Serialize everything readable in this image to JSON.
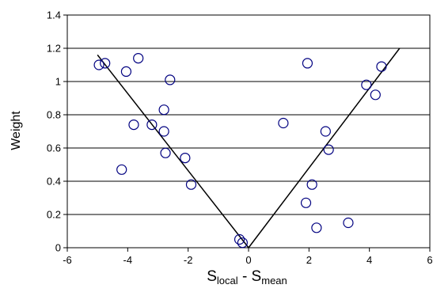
{
  "chart_data": {
    "type": "scatter",
    "title": "",
    "ylabel": "Weight",
    "xlabel": {
      "main": "S",
      "sub1": "local",
      "mid": " - S",
      "sub2": "mean"
    },
    "xlim": [
      -6,
      6
    ],
    "ylim": [
      0,
      1.4
    ],
    "x_ticks": [
      -6,
      -4,
      -2,
      0,
      2,
      4,
      6
    ],
    "y_ticks": [
      0,
      0.2,
      0.4,
      0.6,
      0.8,
      1,
      1.2,
      1.4
    ],
    "x_tick_labels": [
      "-6",
      "-4",
      "-2",
      "0",
      "2",
      "4",
      "6"
    ],
    "y_tick_labels": [
      "0",
      "0.2",
      "0.4",
      "0.6",
      "0.8",
      "1",
      "1.2",
      "1.4"
    ],
    "grid": "horizontal",
    "marker_color": "#000080",
    "line_color": "#000000",
    "points": [
      {
        "x": -4.95,
        "y": 1.1
      },
      {
        "x": -4.75,
        "y": 1.11
      },
      {
        "x": -4.05,
        "y": 1.06
      },
      {
        "x": -3.65,
        "y": 1.14
      },
      {
        "x": -2.6,
        "y": 1.01
      },
      {
        "x": -3.8,
        "y": 0.74
      },
      {
        "x": -3.2,
        "y": 0.74
      },
      {
        "x": -2.8,
        "y": 0.83
      },
      {
        "x": -2.8,
        "y": 0.7
      },
      {
        "x": -2.75,
        "y": 0.57
      },
      {
        "x": -2.1,
        "y": 0.54
      },
      {
        "x": -4.2,
        "y": 0.47
      },
      {
        "x": -1.9,
        "y": 0.38
      },
      {
        "x": -0.3,
        "y": 0.05
      },
      {
        "x": -0.2,
        "y": 0.03
      },
      {
        "x": 1.15,
        "y": 0.75
      },
      {
        "x": 1.95,
        "y": 1.11
      },
      {
        "x": 1.9,
        "y": 0.27
      },
      {
        "x": 2.1,
        "y": 0.38
      },
      {
        "x": 2.25,
        "y": 0.12
      },
      {
        "x": 2.55,
        "y": 0.7
      },
      {
        "x": 2.65,
        "y": 0.59
      },
      {
        "x": 3.3,
        "y": 0.15
      },
      {
        "x": 3.9,
        "y": 0.98
      },
      {
        "x": 4.2,
        "y": 0.92
      },
      {
        "x": 4.4,
        "y": 1.09
      }
    ],
    "lines": [
      {
        "name": "",
        "points": [
          {
            "x": -5.0,
            "y": 1.16
          },
          {
            "x": 0.0,
            "y": 0.0
          }
        ]
      },
      {
        "name": "",
        "points": [
          {
            "x": 0.0,
            "y": 0.0
          },
          {
            "x": 5.0,
            "y": 1.2
          }
        ]
      }
    ]
  }
}
